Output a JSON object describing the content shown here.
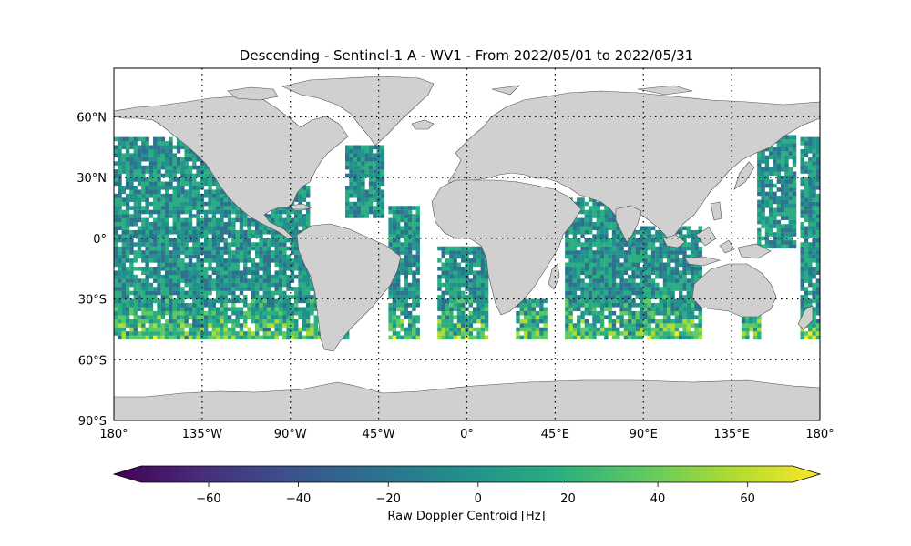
{
  "title": "Descending - Sentinel-1 A - WV1 - From 2022/05/01 to 2022/05/31",
  "map": {
    "projection": "plate-carree",
    "extent": {
      "lon": [
        -180,
        180
      ],
      "lat": [
        -90,
        90
      ]
    },
    "land_color": "#d0d0d0",
    "graticule": {
      "style": "dotted",
      "lons": [
        -135,
        -90,
        -45,
        0,
        45,
        90,
        135,
        180
      ],
      "lats": [
        -60,
        -30,
        0,
        30,
        60
      ]
    },
    "lon_ticks": [
      {
        "value": -180,
        "label": "180°"
      },
      {
        "value": -135,
        "label": "135°W"
      },
      {
        "value": -90,
        "label": "90°W"
      },
      {
        "value": -45,
        "label": "45°W"
      },
      {
        "value": 0,
        "label": "0°"
      },
      {
        "value": 45,
        "label": "45°E"
      },
      {
        "value": 90,
        "label": "90°E"
      },
      {
        "value": 135,
        "label": "135°E"
      },
      {
        "value": 180,
        "label": "180°"
      }
    ],
    "lat_ticks": [
      {
        "value": 60,
        "label": "60°N"
      },
      {
        "value": 30,
        "label": "30°N"
      },
      {
        "value": 0,
        "label": "0°"
      },
      {
        "value": -30,
        "label": "30°S"
      },
      {
        "value": -60,
        "label": "60°S"
      },
      {
        "value": -90,
        "label": "90°S"
      }
    ]
  },
  "colorbar": {
    "label": "Raw Doppler Centroid [Hz]",
    "colormap": "viridis",
    "range": [
      -75,
      70
    ],
    "extend": "both",
    "ticks": [
      {
        "value": -60,
        "label": "−60"
      },
      {
        "value": -40,
        "label": "−40"
      },
      {
        "value": -20,
        "label": "−20"
      },
      {
        "value": 0,
        "label": "0"
      },
      {
        "value": 20,
        "label": "20"
      },
      {
        "value": 40,
        "label": "40"
      },
      {
        "value": 60,
        "label": "60"
      }
    ]
  }
}
